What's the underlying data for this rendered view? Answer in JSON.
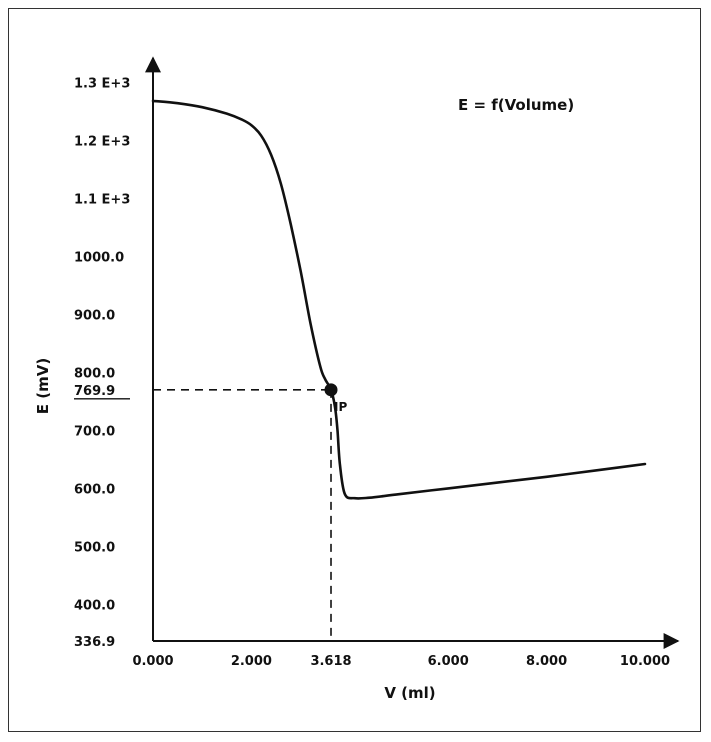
{
  "chart_data": {
    "type": "line",
    "title": "E = f(Volume)",
    "xlabel": "V (ml)",
    "ylabel": "E (mV)",
    "xlim": [
      0,
      10.3
    ],
    "ylim": [
      336.9,
      1335
    ],
    "x_ticks": [
      {
        "value": 0,
        "label": "0.000"
      },
      {
        "value": 2,
        "label": "2.000"
      },
      {
        "value": 3.618,
        "label": "3.618"
      },
      {
        "value": 6,
        "label": "6.000"
      },
      {
        "value": 8,
        "label": "8.000"
      },
      {
        "value": 10,
        "label": "10.000"
      }
    ],
    "y_ticks": [
      {
        "value": 336.9,
        "label": "336.9"
      },
      {
        "value": 400,
        "label": "400.0"
      },
      {
        "value": 500,
        "label": "500.0"
      },
      {
        "value": 600,
        "label": "600.0"
      },
      {
        "value": 700,
        "label": "700.0"
      },
      {
        "value": 769.9,
        "label": "769.9",
        "underline": true
      },
      {
        "value": 800,
        "label": "800.0"
      },
      {
        "value": 900,
        "label": "900.0"
      },
      {
        "value": 1000,
        "label": "1000.0"
      },
      {
        "value": 1100,
        "label": "1.1 E+3"
      },
      {
        "value": 1200,
        "label": "1.2 E+3"
      },
      {
        "value": 1300,
        "label": "1.3 E+3"
      }
    ],
    "series": [
      {
        "x": [
          0,
          0.5,
          1.0,
          1.5,
          1.8,
          2.0,
          2.2,
          2.4,
          2.6,
          2.8,
          3.0,
          3.2,
          3.4,
          3.5,
          3.618,
          3.7,
          3.75,
          3.8,
          3.9,
          4.1,
          4.4,
          5.0,
          6.0,
          7.0,
          8.0,
          9.0,
          10.0
        ],
        "y": [
          1268,
          1264,
          1257,
          1246,
          1236,
          1226,
          1208,
          1175,
          1125,
          1055,
          975,
          885,
          810,
          788,
          769.9,
          740,
          700,
          640,
          590,
          583,
          584,
          590,
          600,
          610,
          620,
          631,
          642
        ]
      }
    ],
    "inflection_point": {
      "x": 3.618,
      "y": 769.9,
      "label": "IP"
    },
    "grid": false,
    "legend": "none"
  }
}
